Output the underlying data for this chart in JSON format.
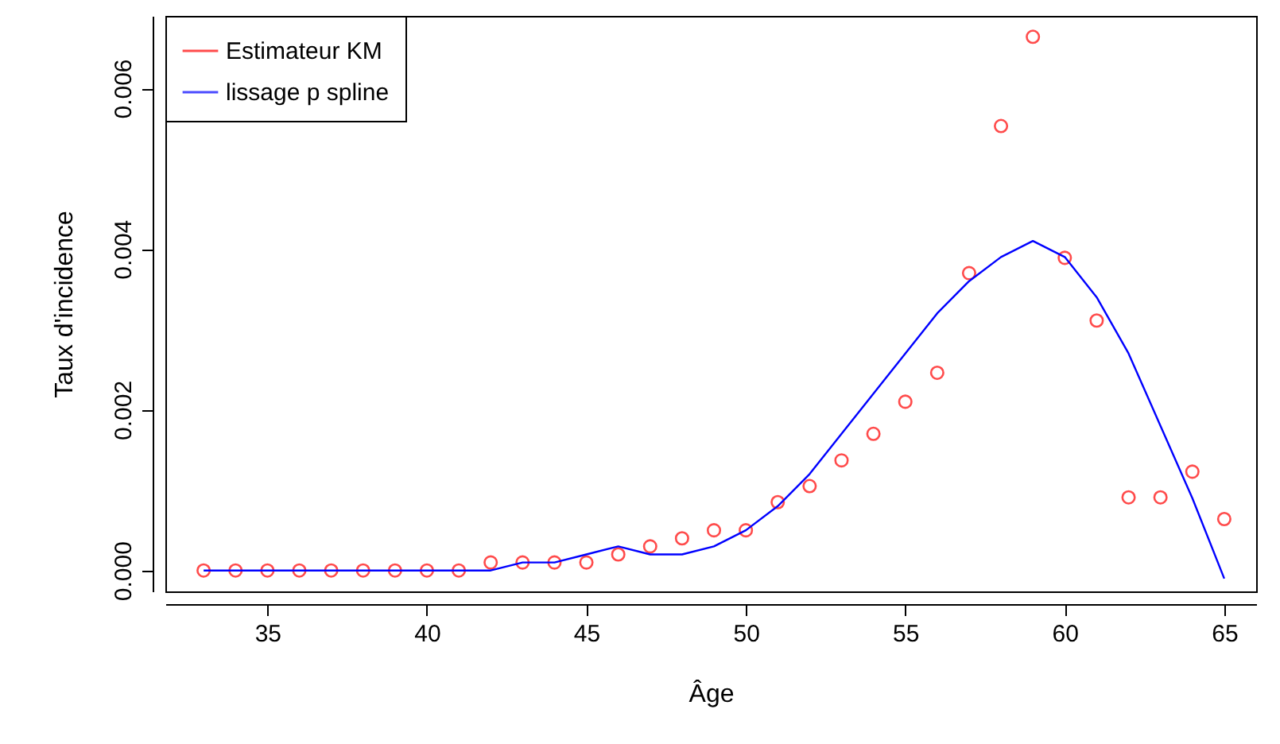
{
  "chart_data": {
    "type": "scatter",
    "xlabel": "Âge",
    "ylabel": "Taux d'incidence",
    "x": [
      33,
      34,
      35,
      36,
      37,
      38,
      39,
      40,
      41,
      42,
      43,
      44,
      45,
      46,
      47,
      48,
      49,
      50,
      51,
      52,
      53,
      54,
      55,
      56,
      57,
      58,
      59,
      60,
      61,
      62,
      63,
      64,
      65
    ],
    "series": [
      {
        "name": "Estimateur KM",
        "color": "#ff0000",
        "marker": "circle",
        "values": [
          0,
          0,
          0,
          0,
          0,
          0,
          0,
          0,
          0,
          0.0001,
          0.0001,
          0.0001,
          0.0001,
          0.0002,
          0.0003,
          0.0004,
          0.0005,
          0.0005,
          0.00085,
          0.00105,
          0.00137,
          0.0017,
          0.0021,
          0.00246,
          0.0037,
          0.00553,
          0.00664,
          0.00389,
          0.00311,
          0.00091,
          0.00091,
          0.00123,
          0.00064
        ]
      },
      {
        "name": "lissage p spline",
        "color": "#0000ff",
        "type": "line",
        "marker": "none",
        "values": [
          0,
          0,
          0,
          0,
          0,
          0,
          0,
          0,
          0,
          0,
          0.0001,
          0.0001,
          0.0002,
          0.0003,
          0.0002,
          0.0002,
          0.0003,
          0.0005,
          0.0008,
          0.0012,
          0.0017,
          0.0022,
          0.0027,
          0.0032,
          0.0036,
          0.0039,
          0.0041,
          0.0039,
          0.0034,
          0.0027,
          0.0018,
          0.0009,
          -0.0001
        ]
      }
    ],
    "xlim": [
      31.8,
      66
    ],
    "xticks": [
      35,
      40,
      45,
      50,
      55,
      60,
      65
    ],
    "ylim": [
      -0.00026,
      0.0069
    ],
    "yticks": [
      {
        "value": 0,
        "label": "0.000"
      },
      {
        "value": 0.002,
        "label": "0.002"
      },
      {
        "value": 0.004,
        "label": "0.004"
      },
      {
        "value": 0.006,
        "label": "0.006"
      }
    ],
    "grid": false,
    "legend": "top left"
  }
}
